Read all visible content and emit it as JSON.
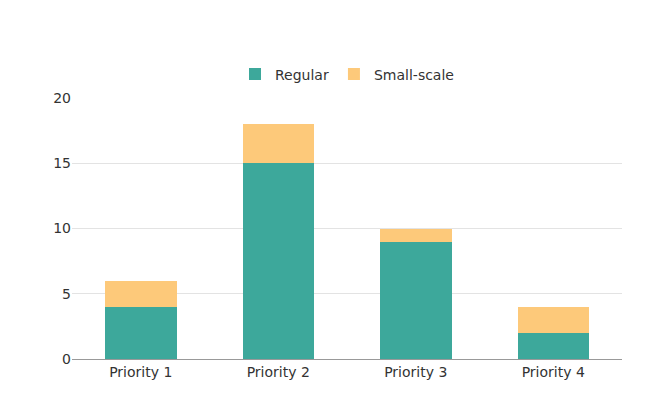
{
  "chart_data": {
    "type": "bar",
    "stacked": true,
    "categories": [
      "Priority 1",
      "Priority 2",
      "Priority 3",
      "Priority 4"
    ],
    "series": [
      {
        "name": "Regular",
        "color": "#3da89b",
        "values": [
          4,
          15,
          9,
          2
        ]
      },
      {
        "name": "Small-scale",
        "color": "#fdc97a",
        "values": [
          2,
          3,
          1,
          2
        ]
      }
    ],
    "ylim": [
      0,
      20
    ],
    "yticks": [
      0,
      5,
      10,
      15,
      20
    ],
    "grid": true,
    "legend": "top"
  }
}
